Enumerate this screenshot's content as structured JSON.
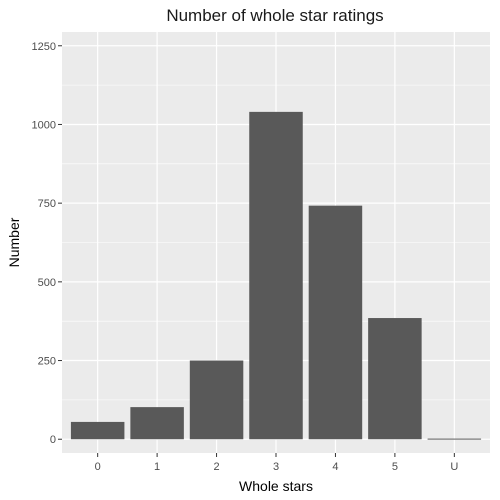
{
  "chart_data": {
    "type": "bar",
    "title": "Number of whole star ratings",
    "xlabel": "Whole stars",
    "ylabel": "Number",
    "categories": [
      "0",
      "1",
      "2",
      "3",
      "4",
      "5",
      "U"
    ],
    "values": [
      55,
      102,
      250,
      1040,
      742,
      385,
      2
    ],
    "ylim": [
      0,
      1250
    ],
    "yticks": [
      0,
      250,
      500,
      750,
      1000,
      1250
    ],
    "grid": true,
    "legend": "none",
    "colors": {
      "panel": "#ebebeb",
      "grid": "#ffffff",
      "bar": "#595959"
    }
  }
}
